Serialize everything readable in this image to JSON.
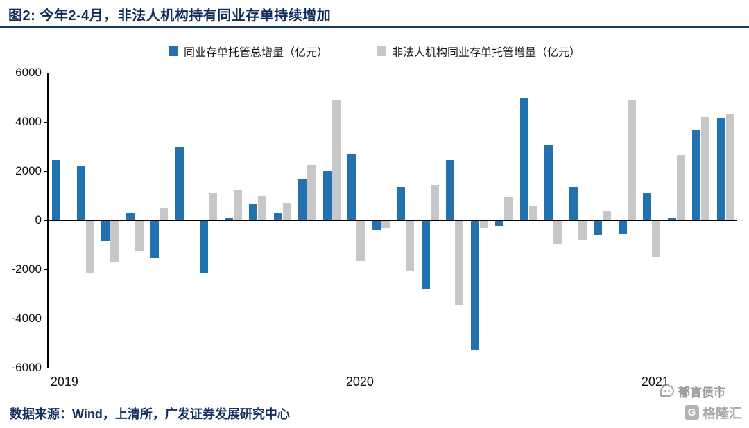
{
  "header": {
    "title": "图2:  今年2-4月，非法人机构持有同业存单持续增加"
  },
  "legend": [
    {
      "label": "同业存单托管总增量（亿元）",
      "color": "#2272b0"
    },
    {
      "label": "非法人机构同业存单托管增量（亿元）",
      "color": "#c7c7c7"
    }
  ],
  "footer": {
    "source": "数据来源：Wind，上清所，广发证券发展研究中心"
  },
  "watermarks": {
    "yuyan": "郁言债市",
    "gelonghui": "格隆汇",
    "gelonghui_badge": "G"
  },
  "chart_data": {
    "type": "bar",
    "title": "今年2-4月，非法人机构持有同业存单持续增加",
    "categories": [
      "2019-01",
      "2019-02",
      "2019-03",
      "2019-04",
      "2019-05",
      "2019-06",
      "2019-07",
      "2019-08",
      "2019-09",
      "2019-10",
      "2019-11",
      "2019-12",
      "2020-01",
      "2020-02",
      "2020-03",
      "2020-04",
      "2020-05",
      "2020-06",
      "2020-07",
      "2020-08",
      "2020-09",
      "2020-10",
      "2020-11",
      "2020-12",
      "2021-01",
      "2021-02",
      "2021-03",
      "2021-04"
    ],
    "series": [
      {
        "name": "同业存单托管总增量（亿元）",
        "color": "#2272b0",
        "values": [
          2450,
          2200,
          -850,
          300,
          -1550,
          3000,
          -2150,
          80,
          650,
          280,
          1700,
          2000,
          2700,
          -400,
          1350,
          -2800,
          2450,
          -5300,
          -250,
          4950,
          3050,
          1350,
          -600,
          -550,
          1100,
          80,
          3650,
          4150
        ]
      },
      {
        "name": "非法人机构同业存单托管增量（亿元）",
        "color": "#c7c7c7",
        "values": [
          0,
          -2150,
          -1700,
          -1250,
          500,
          0,
          1100,
          1250,
          1000,
          700,
          2250,
          4900,
          -1650,
          -300,
          -2050,
          1450,
          -3450,
          -300,
          950,
          550,
          -950,
          -800,
          400,
          4900,
          -1500,
          2650,
          4200,
          4350
        ]
      }
    ],
    "ylim": [
      -6000,
      6000
    ],
    "y_ticks": [
      6000,
      4000,
      2000,
      0,
      -2000,
      -4000,
      -6000
    ],
    "x_labels": [
      {
        "label": "2019",
        "index": 0
      },
      {
        "label": "2020",
        "index": 12
      },
      {
        "label": "2021",
        "index": 24
      }
    ],
    "grid": false,
    "legend_position": "top"
  }
}
